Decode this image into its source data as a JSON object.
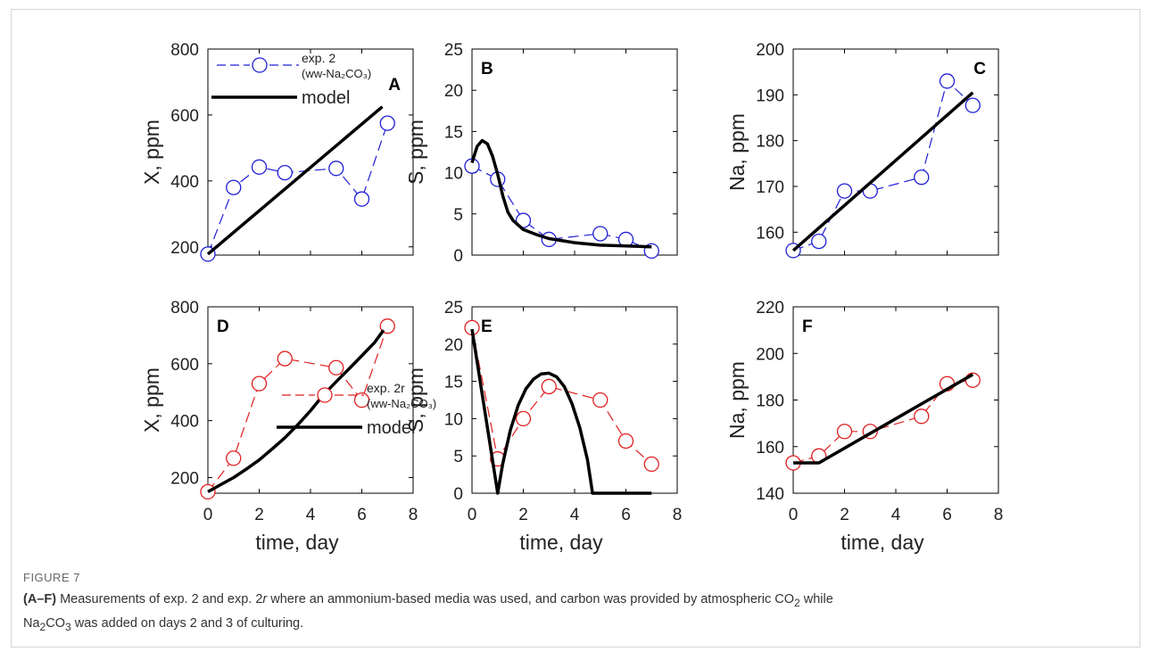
{
  "figure_label": "FIGURE 7",
  "caption": {
    "lead": "(A–F)",
    "line1_pre": " Measurements of exp. 2 and exp. 2",
    "line1_italic": "r",
    "line1_post": " where an ammonium-based media was used, and carbon was provided by atmospheric CO",
    "co2_sub": "2",
    "line1_end": " while",
    "line2_na": "Na",
    "line2_sub1": "2",
    "line2_co": "CO",
    "line2_sub2": "3",
    "line2_rest": " was added on days 2 and 3 of culturing."
  },
  "colors": {
    "exp2": "#1f1fd6",
    "exp2r": "#e02020",
    "model": "#000000"
  },
  "chart_data": [
    {
      "id": "A",
      "type": "line",
      "panel_label": "A",
      "ylabel": "X, ppm",
      "xlabel": "",
      "xlim": [
        0,
        8
      ],
      "ylim": [
        175,
        800
      ],
      "xticks": [],
      "yticks": [
        200,
        400,
        600,
        800
      ],
      "series": [
        {
          "name": "exp. 2 (ww-Na₂CO₃)",
          "style": "marker-dashed",
          "color": "#1f1fd6",
          "x": [
            0,
            1,
            2,
            3,
            5,
            6,
            7
          ],
          "y": [
            178,
            380,
            442,
            425,
            438,
            345,
            575
          ]
        },
        {
          "name": "model",
          "style": "solid",
          "color": "#000000",
          "x": [
            0,
            6.8
          ],
          "y": [
            178,
            625
          ]
        }
      ],
      "legend": {
        "position": "top",
        "lines": [
          "exp. 2",
          "(ww-Na₂CO₃)",
          "model"
        ]
      }
    },
    {
      "id": "B",
      "type": "line",
      "panel_label": "B",
      "ylabel": "S, ppm",
      "xlabel": "",
      "xlim": [
        0,
        8
      ],
      "ylim": [
        0,
        25
      ],
      "xticks": [],
      "yticks": [
        0,
        5,
        10,
        15,
        20,
        25
      ],
      "series": [
        {
          "name": "exp. 2",
          "style": "marker-dashed",
          "color": "#1f1fd6",
          "x": [
            0,
            1,
            2,
            3,
            5,
            6,
            7
          ],
          "y": [
            10.8,
            9.2,
            4.2,
            1.9,
            2.6,
            1.9,
            0.5
          ]
        },
        {
          "name": "model",
          "style": "solid",
          "color": "#000000",
          "x": [
            0,
            0.2,
            0.4,
            0.6,
            0.8,
            1.0,
            1.2,
            1.4,
            1.6,
            2.0,
            2.5,
            3.0,
            4.0,
            5.0,
            6.0,
            7.0
          ],
          "y": [
            11.2,
            13.2,
            13.9,
            13.5,
            12.0,
            9.8,
            7.2,
            5.2,
            4.2,
            3.1,
            2.5,
            2.0,
            1.5,
            1.2,
            1.1,
            1.0
          ]
        }
      ]
    },
    {
      "id": "C",
      "type": "line",
      "panel_label": "C",
      "ylabel": "Na, ppm",
      "xlabel": "",
      "xlim": [
        0,
        8
      ],
      "ylim": [
        155,
        200
      ],
      "xticks": [],
      "yticks": [
        160,
        170,
        180,
        190,
        200
      ],
      "series": [
        {
          "name": "exp. 2",
          "style": "marker-dashed",
          "color": "#1f1fd6",
          "x": [
            0,
            1,
            2,
            3,
            5,
            6,
            7
          ],
          "y": [
            156,
            158,
            169,
            169,
            172,
            193,
            187.7
          ]
        },
        {
          "name": "model",
          "style": "solid",
          "color": "#000000",
          "x": [
            0,
            7
          ],
          "y": [
            156,
            190.5
          ]
        }
      ]
    },
    {
      "id": "D",
      "type": "line",
      "panel_label": "D",
      "ylabel": "X, ppm",
      "xlabel": "time, day",
      "xlim": [
        0,
        8
      ],
      "ylim": [
        145,
        800
      ],
      "xticks": [
        0,
        2,
        4,
        6,
        8
      ],
      "yticks": [
        200,
        400,
        600,
        800
      ],
      "series": [
        {
          "name": "exp. 2r (ww-Na₂CO₃)",
          "style": "marker-dashed",
          "color": "#e02020",
          "x": [
            0,
            1,
            2,
            3,
            5,
            6,
            7
          ],
          "y": [
            150,
            268,
            530,
            618,
            586,
            472,
            732
          ]
        },
        {
          "name": "model",
          "style": "solid",
          "color": "#000000",
          "x": [
            0,
            0.5,
            1,
            1.5,
            2,
            2.5,
            3,
            3.5,
            4,
            4.5,
            5,
            5.5,
            6,
            6.5,
            6.85
          ],
          "y": [
            150,
            175,
            200,
            230,
            262,
            300,
            340,
            385,
            435,
            490,
            537,
            582,
            628,
            675,
            718
          ]
        }
      ],
      "legend": {
        "position": "bottom-right",
        "lines": [
          "exp. 2r",
          "(ww-Na₂CO₃)",
          "model"
        ]
      }
    },
    {
      "id": "E",
      "type": "line",
      "panel_label": "E",
      "ylabel": "S, ppm",
      "xlabel": "time, day",
      "xlim": [
        0,
        8
      ],
      "ylim": [
        0,
        25
      ],
      "xticks": [
        0,
        2,
        4,
        6,
        8
      ],
      "yticks": [
        0,
        5,
        10,
        15,
        20,
        25
      ],
      "series": [
        {
          "name": "exp. 2r",
          "style": "marker-dashed",
          "color": "#e02020",
          "x": [
            0,
            1,
            2,
            3,
            5,
            6,
            7
          ],
          "y": [
            22.2,
            4.6,
            10.0,
            14.3,
            12.5,
            7.0,
            3.9
          ]
        },
        {
          "name": "model",
          "style": "solid",
          "color": "#000000",
          "x": [
            0,
            1.0,
            1.2,
            1.5,
            1.8,
            2.1,
            2.4,
            2.7,
            3.0,
            3.3,
            3.6,
            3.9,
            4.2,
            4.5,
            4.7,
            5.0,
            7.0
          ],
          "y": [
            22.0,
            0,
            4.0,
            8.5,
            11.8,
            14.0,
            15.3,
            16.0,
            16.1,
            15.6,
            14.3,
            12.0,
            8.8,
            4.5,
            0,
            0,
            0
          ]
        }
      ]
    },
    {
      "id": "F",
      "type": "line",
      "panel_label": "F",
      "ylabel": "Na, ppm",
      "xlabel": "time, day",
      "xlim": [
        0,
        8
      ],
      "ylim": [
        140,
        220
      ],
      "xticks": [
        0,
        2,
        4,
        6,
        8
      ],
      "yticks": [
        140,
        160,
        180,
        200,
        220
      ],
      "series": [
        {
          "name": "exp. 2r",
          "style": "marker-dashed",
          "color": "#e02020",
          "x": [
            0,
            1,
            2,
            3,
            5,
            6,
            7
          ],
          "y": [
            153,
            156,
            166.5,
            166.5,
            173,
            187,
            188.5
          ]
        },
        {
          "name": "model",
          "style": "solid",
          "color": "#000000",
          "x": [
            0,
            1,
            7
          ],
          "y": [
            153,
            153,
            191
          ]
        }
      ]
    }
  ]
}
